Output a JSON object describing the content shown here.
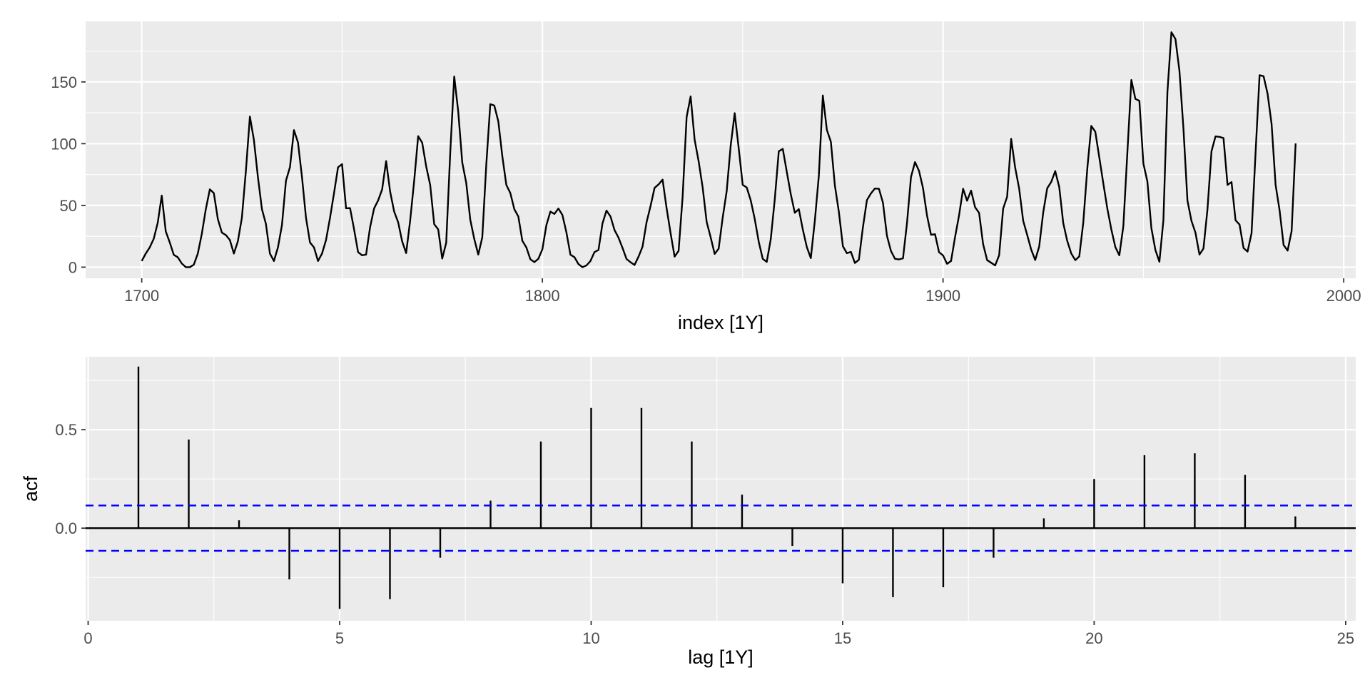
{
  "chart_data": [
    {
      "type": "line",
      "title": "",
      "xlabel": "index [1Y]",
      "ylabel": "",
      "xlim": [
        1686,
        2003
      ],
      "ylim": [
        -9,
        199
      ],
      "x_ticks": [
        1700,
        1800,
        1900,
        2000
      ],
      "x_tick_labels": [
        "1700",
        "1800",
        "1900",
        "2000"
      ],
      "x_minor_ticks": [
        1750,
        1850,
        1950
      ],
      "y_ticks": [
        0,
        50,
        100,
        150
      ],
      "y_tick_labels": [
        "0",
        "50",
        "100",
        "150"
      ],
      "y_minor_ticks": [
        25,
        75,
        125,
        175
      ],
      "grid": true,
      "series": [
        {
          "x_start": 1700,
          "x_step": 1,
          "values": [
            5,
            11,
            16,
            23,
            36,
            58,
            29,
            20,
            10,
            8,
            3,
            0,
            0,
            2,
            11,
            27,
            47,
            63,
            60,
            39,
            28,
            26,
            22,
            11,
            21,
            40,
            78,
            122,
            103,
            73,
            47,
            35,
            11,
            5,
            16,
            34,
            70,
            81,
            111,
            101,
            73,
            40,
            20,
            16,
            5,
            11,
            22,
            40,
            60,
            80.9,
            83.4,
            47.7,
            47.8,
            30.7,
            12.2,
            9.6,
            10.2,
            32.4,
            47.6,
            54,
            62.9,
            85.9,
            61.2,
            45.1,
            36.4,
            20.9,
            11.4,
            37.8,
            69.8,
            106.1,
            100.8,
            81.6,
            66.5,
            34.8,
            30.6,
            7,
            19.8,
            92.5,
            154.4,
            125.9,
            84.8,
            68.1,
            38.5,
            22.8,
            10.2,
            24.1,
            82.9,
            132,
            130.9,
            118.1,
            89.9,
            66.6,
            60,
            46.9,
            41,
            21.3,
            16,
            6.4,
            4.1,
            6.8,
            14.5,
            34,
            45,
            43.1,
            47.5,
            42.2,
            28.1,
            10.1,
            8.1,
            2.5,
            0,
            1.4,
            5,
            12.2,
            13.9,
            35.4,
            45.8,
            41.1,
            30.1,
            23.9,
            15.6,
            6.6,
            4,
            1.8,
            8.5,
            16.6,
            36.3,
            49.6,
            64.2,
            67,
            70.9,
            47.8,
            27.5,
            8.5,
            13.2,
            56.9,
            121.5,
            138.3,
            103.2,
            85.7,
            64.6,
            36.7,
            24.2,
            10.7,
            15,
            40.1,
            61.5,
            98.5,
            124.7,
            96.3,
            66.6,
            64.5,
            54.1,
            39,
            20.6,
            6.7,
            4.3,
            22.7,
            54.8,
            93.8,
            95.8,
            77.2,
            59.1,
            44,
            47,
            30.5,
            16.3,
            7.3,
            37.6,
            74,
            139,
            111.2,
            101.6,
            66.2,
            44.7,
            17,
            11.3,
            12.4,
            3.4,
            6,
            32.3,
            54.3,
            59.7,
            63.7,
            63.5,
            52.2,
            25.4,
            13.1,
            6.8,
            6.3,
            7.1,
            35.6,
            73,
            85.1,
            78,
            64,
            41.8,
            26.2,
            26.7,
            12.1,
            9.5,
            2.7,
            5,
            24.4,
            42,
            63.5,
            53.8,
            62,
            48.5,
            43.9,
            18.6,
            5.7,
            3.6,
            1.4,
            9.6,
            47.4,
            57.1,
            103.9,
            80.6,
            63.6,
            37.6,
            26.1,
            14.2,
            5.8,
            16.7,
            44.3,
            63.9,
            69,
            77.8,
            64.9,
            35.7,
            21.2,
            11.1,
            5.7,
            8.7,
            36.1,
            79.7,
            114.4,
            109.6,
            88.8,
            67.8,
            47.5,
            30.6,
            16.3,
            9.6,
            33.2,
            92.6,
            151.6,
            136.3,
            134.7,
            83.9,
            69.4,
            31.5,
            13.9,
            4.4,
            38,
            141.7,
            190.2,
            184.8,
            159,
            112.3,
            53.9,
            37.5,
            27.9,
            10.2,
            15.1,
            47,
            93.8,
            105.9,
            105.5,
            104.5,
            66.6,
            68.9,
            38,
            34.5,
            15.5,
            12.6,
            27.5,
            92.5,
            155.4,
            154.6,
            140.4,
            115.9,
            66.6,
            45.9,
            17.9,
            13.4,
            29.2,
            100.2
          ]
        }
      ]
    },
    {
      "type": "bar",
      "title": "",
      "xlabel": "lag [1Y]",
      "ylabel": "acf",
      "xlim": [
        -0.05,
        25.2
      ],
      "ylim": [
        -0.47,
        0.87
      ],
      "x_ticks": [
        0,
        5,
        10,
        15,
        20,
        25
      ],
      "x_tick_labels": [
        "0",
        "5",
        "10",
        "15",
        "20",
        "25"
      ],
      "x_minor_ticks": [
        2.5,
        7.5,
        12.5,
        17.5,
        22.5
      ],
      "y_ticks": [
        0,
        0.5
      ],
      "y_tick_labels": [
        "0.0",
        "0.5"
      ],
      "y_minor_ticks": [
        -0.25,
        0.25,
        0.75
      ],
      "grid": true,
      "categories": [
        1,
        2,
        3,
        4,
        5,
        6,
        7,
        8,
        9,
        10,
        11,
        12,
        13,
        14,
        15,
        16,
        17,
        18,
        19,
        20,
        21,
        22,
        23,
        24
      ],
      "values": [
        0.82,
        0.45,
        0.04,
        -0.26,
        -0.41,
        -0.36,
        -0.15,
        0.14,
        0.44,
        0.61,
        0.61,
        0.44,
        0.17,
        -0.09,
        -0.28,
        -0.35,
        -0.3,
        -0.15,
        0.05,
        0.25,
        0.37,
        0.38,
        0.27,
        0.06
      ],
      "confidence_bound": 0.115,
      "colors": {
        "bars": "#000000",
        "zero_line": "#000000",
        "confidence": "#0000FF"
      }
    }
  ]
}
